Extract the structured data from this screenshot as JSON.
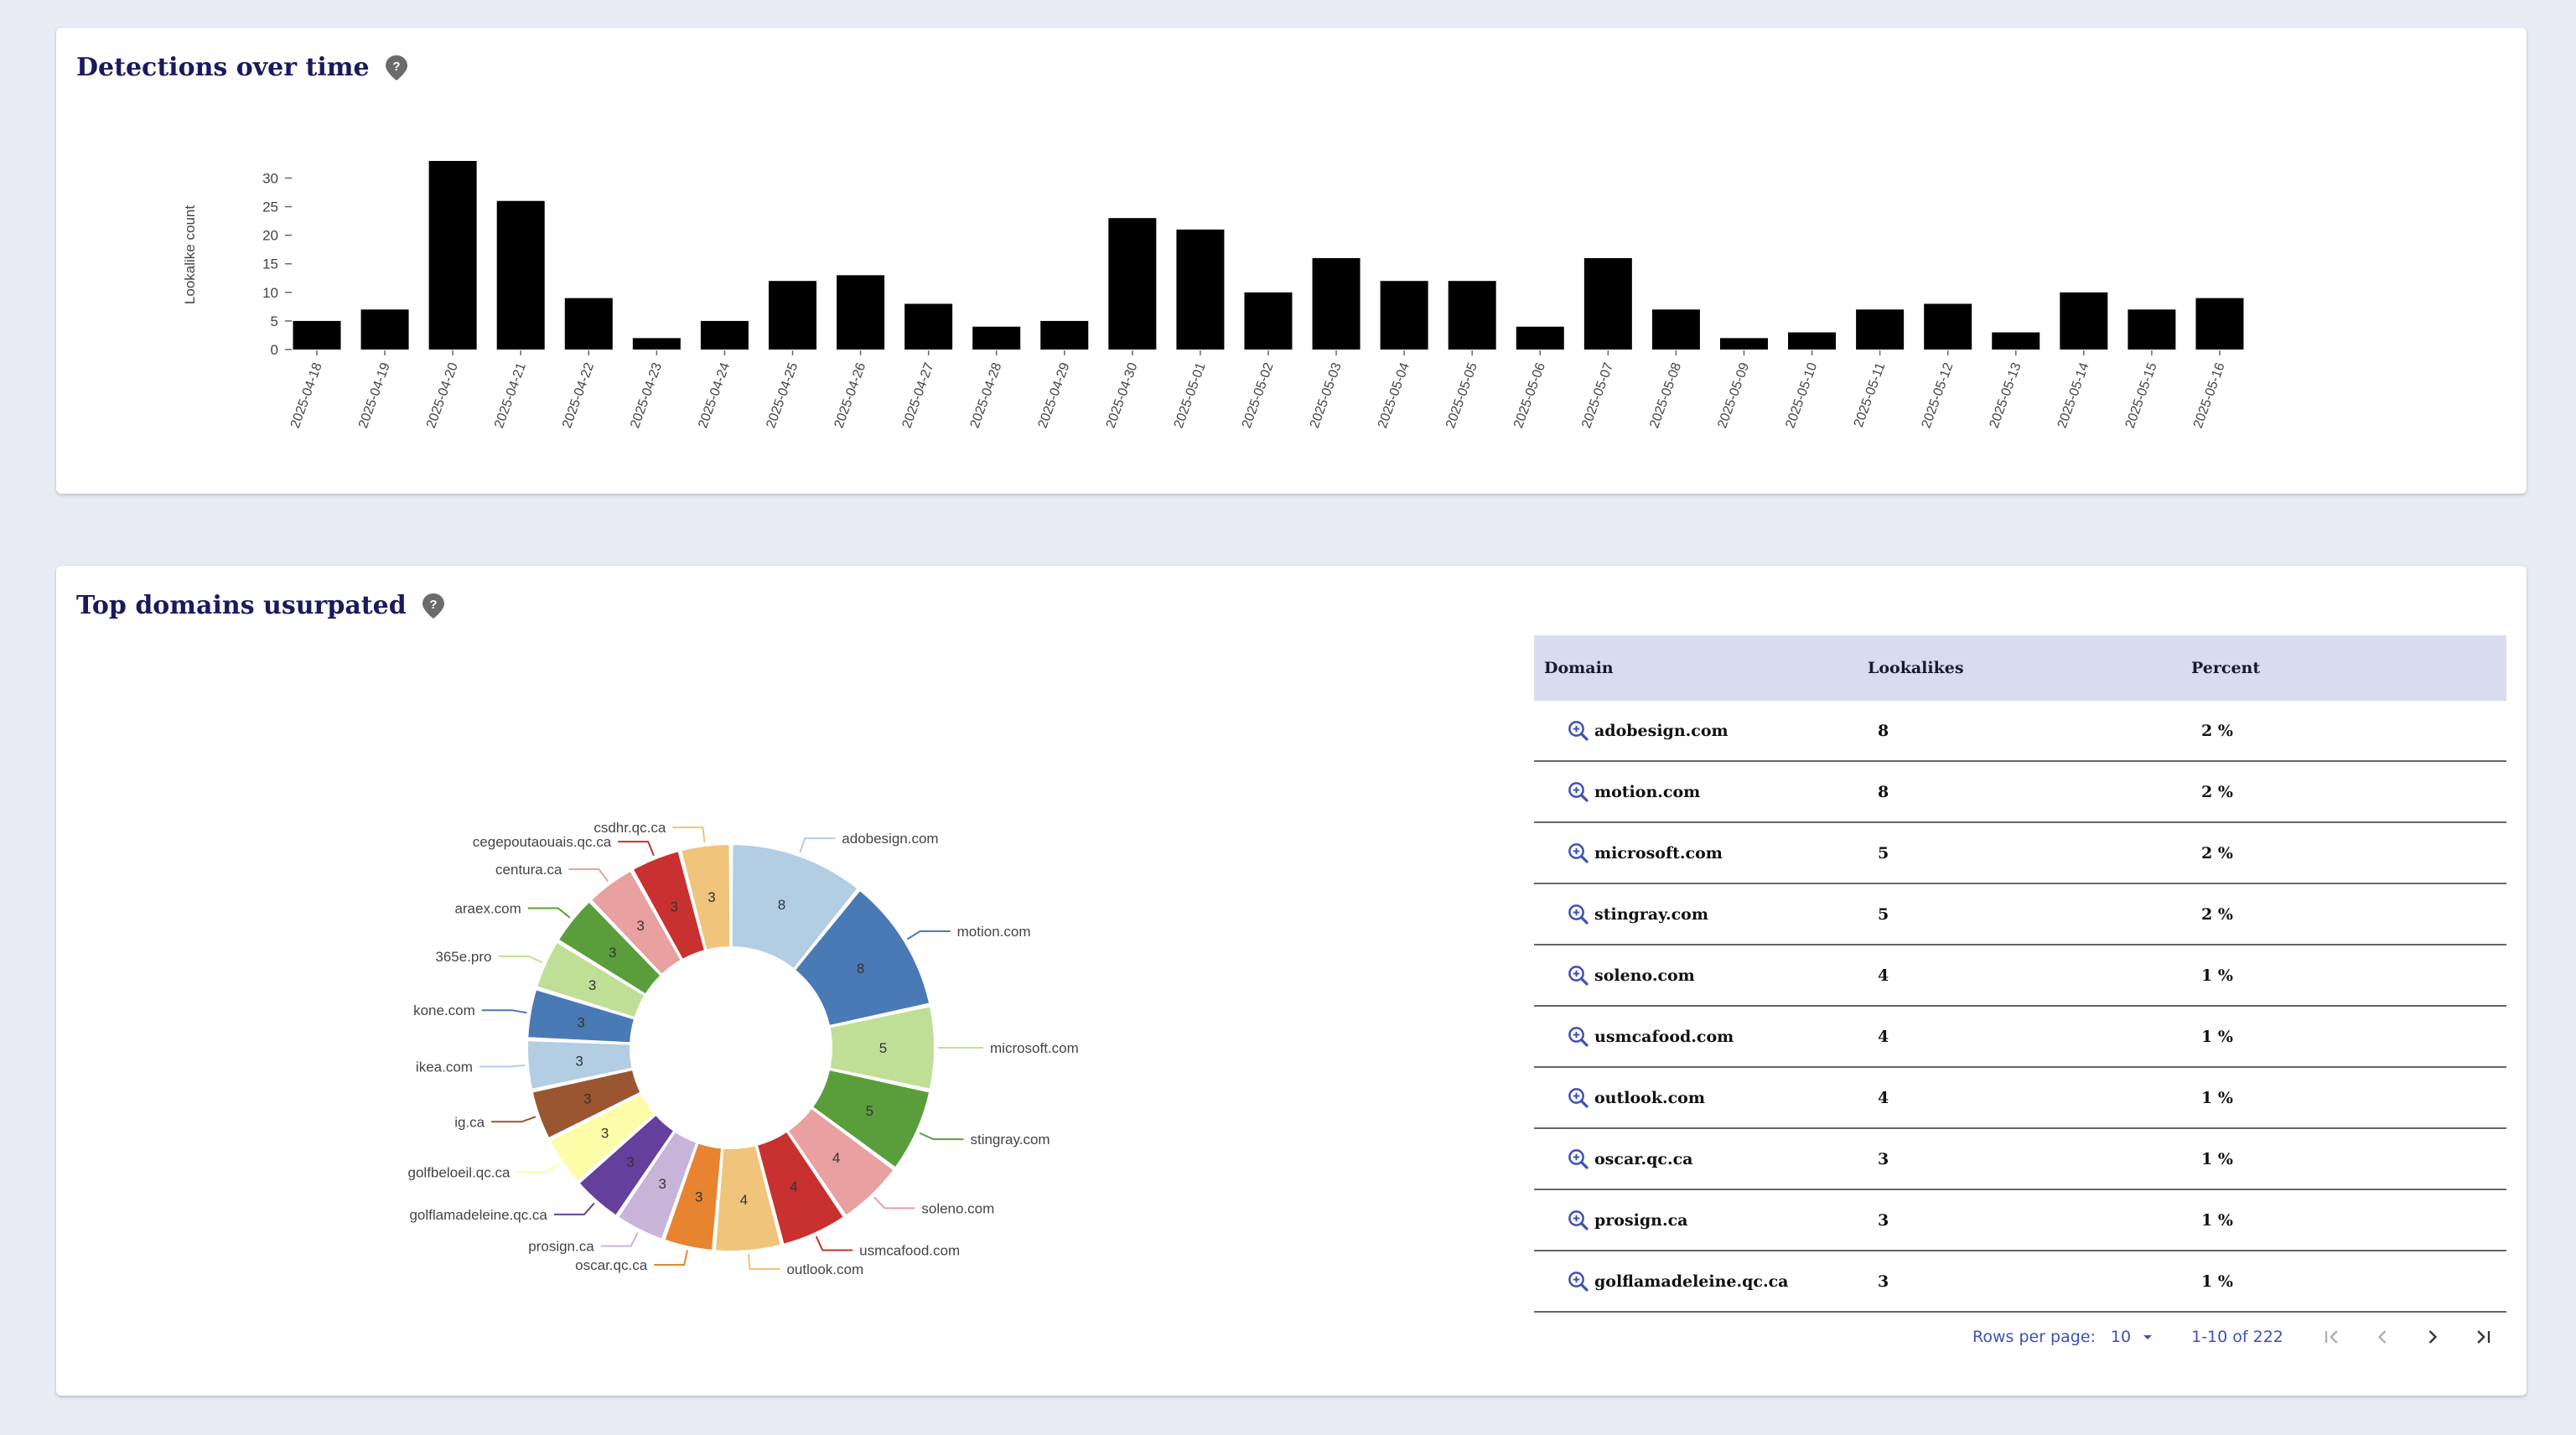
{
  "detections_card": {
    "title": "Detections over time",
    "help_icon": "help-pin-icon"
  },
  "domains_card": {
    "title": "Top domains usurpated",
    "help_icon": "help-pin-icon"
  },
  "chart_data": [
    {
      "type": "bar",
      "title": "Detections over time",
      "xlabel": "",
      "ylabel": "Lookalike count",
      "ylim": [
        0,
        33
      ],
      "yticks": [
        0,
        5,
        10,
        15,
        20,
        25,
        30
      ],
      "color": "#000000",
      "categories": [
        "2025-04-18",
        "2025-04-19",
        "2025-04-20",
        "2025-04-21",
        "2025-04-22",
        "2025-04-23",
        "2025-04-24",
        "2025-04-25",
        "2025-04-26",
        "2025-04-27",
        "2025-04-28",
        "2025-04-29",
        "2025-04-30",
        "2025-05-01",
        "2025-05-02",
        "2025-05-03",
        "2025-05-04",
        "2025-05-05",
        "2025-05-06",
        "2025-05-07",
        "2025-05-08",
        "2025-05-09",
        "2025-05-10",
        "2025-05-11",
        "2025-05-12",
        "2025-05-13",
        "2025-05-14",
        "2025-05-15",
        "2025-05-16"
      ],
      "values": [
        5,
        7,
        33,
        26,
        9,
        2,
        5,
        12,
        13,
        8,
        4,
        5,
        23,
        21,
        10,
        16,
        12,
        12,
        4,
        16,
        7,
        2,
        3,
        7,
        8,
        3,
        10,
        7,
        9
      ]
    },
    {
      "type": "pie",
      "variant": "donut",
      "title": "Top domains usurpated",
      "labels": [
        "adobesign.com",
        "motion.com",
        "microsoft.com",
        "stingray.com",
        "soleno.com",
        "usmcafood.com",
        "outlook.com",
        "oscar.qc.ca",
        "prosign.ca",
        "golflamadeleine.qc.ca",
        "golfbeloeil.qc.ca",
        "ig.ca",
        "ikea.com",
        "kone.com",
        "365e.pro",
        "araex.com",
        "centura.ca",
        "cegepoutaouais.qc.ca",
        "csdhr.qc.ca"
      ],
      "values": [
        8,
        8,
        5,
        5,
        4,
        4,
        4,
        3,
        3,
        3,
        3,
        3,
        3,
        3,
        3,
        3,
        3,
        3,
        3
      ],
      "colors": [
        "#b3cde3",
        "#4a7ab6",
        "#bfdf96",
        "#5a9e3b",
        "#e8a0a0",
        "#c93030",
        "#f0c47a",
        "#e8832f",
        "#c8b4d8",
        "#643f9c",
        "#fdfca8",
        "#9a5630",
        "#b3cde3",
        "#4a7ab6",
        "#bfdf96",
        "#5a9e3b",
        "#e8a0a0",
        "#c93030",
        "#f0c47a"
      ]
    }
  ],
  "table": {
    "headers": {
      "domain": "Domain",
      "lookalikes": "Lookalikes",
      "percent": "Percent"
    },
    "rows": [
      {
        "domain": "adobesign.com",
        "lookalikes": "8",
        "percent": "2 %"
      },
      {
        "domain": "motion.com",
        "lookalikes": "8",
        "percent": "2 %"
      },
      {
        "domain": "microsoft.com",
        "lookalikes": "5",
        "percent": "2 %"
      },
      {
        "domain": "stingray.com",
        "lookalikes": "5",
        "percent": "2 %"
      },
      {
        "domain": "soleno.com",
        "lookalikes": "4",
        "percent": "1 %"
      },
      {
        "domain": "usmcafood.com",
        "lookalikes": "4",
        "percent": "1 %"
      },
      {
        "domain": "outlook.com",
        "lookalikes": "4",
        "percent": "1 %"
      },
      {
        "domain": "oscar.qc.ca",
        "lookalikes": "3",
        "percent": "1 %"
      },
      {
        "domain": "prosign.ca",
        "lookalikes": "3",
        "percent": "1 %"
      },
      {
        "domain": "golflamadeleine.qc.ca",
        "lookalikes": "3",
        "percent": "1 %"
      }
    ],
    "row_icon": "zoom-search-icon"
  },
  "pagination": {
    "rows_per_page_label": "Rows per page:",
    "rows_per_page_value": "10",
    "range_text": "1-10 of 222",
    "first_icon": "first-page-icon",
    "prev_icon": "prev-page-icon",
    "next_icon": "next-page-icon",
    "last_icon": "last-page-icon"
  },
  "colors": {
    "background": "#e9ecf5",
    "title": "#1a1a5e",
    "table_header": "#d8dced",
    "accent": "#3f51b5"
  }
}
